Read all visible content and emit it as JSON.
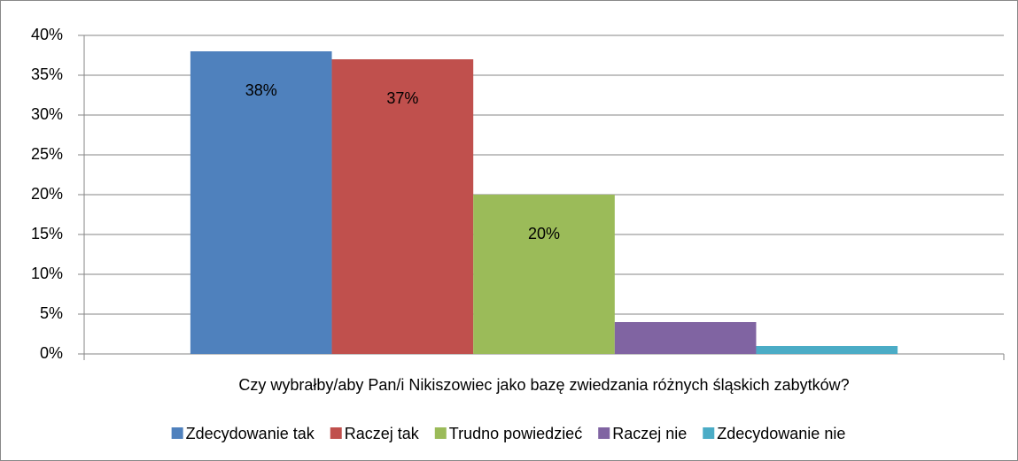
{
  "chart_data": {
    "type": "bar",
    "categories": [
      "Czy wybrałby/aby Pan/i Nikiszowiec jako bazę zwiedzania różnych śląskich zabytków?"
    ],
    "series": [
      {
        "name": "Zdecydowanie tak",
        "color": "#4f81bd",
        "values": [
          38
        ],
        "value_labels": [
          "38%"
        ]
      },
      {
        "name": "Raczej tak",
        "color": "#c0504d",
        "values": [
          37
        ],
        "value_labels": [
          "37%"
        ]
      },
      {
        "name": "Trudno powiedzieć",
        "color": "#9bbb59",
        "values": [
          20
        ],
        "value_labels": [
          "20%"
        ]
      },
      {
        "name": "Raczej nie",
        "color": "#8064a2",
        "values": [
          4
        ]
      },
      {
        "name": "Zdecydowanie nie",
        "color": "#4bacc6",
        "values": [
          1
        ]
      }
    ],
    "ylim": [
      0,
      40
    ],
    "yticks": [
      {
        "value": 0,
        "label": "0%"
      },
      {
        "value": 5,
        "label": "5%"
      },
      {
        "value": 10,
        "label": "10%"
      },
      {
        "value": 15,
        "label": "15%"
      },
      {
        "value": 20,
        "label": "20%"
      },
      {
        "value": 25,
        "label": "25%"
      },
      {
        "value": 30,
        "label": "30%"
      },
      {
        "value": 35,
        "label": "35%"
      },
      {
        "value": 40,
        "label": "40%"
      }
    ],
    "grid": true,
    "legend": "bottom"
  }
}
